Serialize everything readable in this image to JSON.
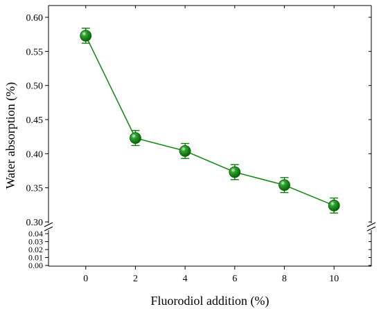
{
  "chart_data": {
    "type": "line",
    "xlabel": "Fluorodiol addition (%)",
    "ylabel": "Water absorption (%)",
    "x_ticks": [
      "0",
      "2",
      "4",
      "6",
      "8",
      "10"
    ],
    "xlim": [
      -1.5,
      11.5
    ],
    "y_upper_range": [
      0.3,
      0.6
    ],
    "y_upper_ticks": [
      "0.30",
      "0.35",
      "0.40",
      "0.45",
      "0.50",
      "0.55",
      "0.60"
    ],
    "y_lower_range": [
      0.0,
      0.04
    ],
    "y_lower_ticks": [
      "0.00",
      "0.01",
      "0.02",
      "0.03",
      "0.04"
    ],
    "axis_break": true,
    "grid": false,
    "legend": false,
    "color": "#1a8a1a",
    "marker_color": "#0a7a0a",
    "series": [
      {
        "x": [
          0,
          2,
          4,
          6,
          8,
          10
        ],
        "y": [
          0.573,
          0.423,
          0.404,
          0.373,
          0.354,
          0.324
        ],
        "error": [
          0.011,
          0.011,
          0.011,
          0.011,
          0.011,
          0.011
        ]
      }
    ]
  }
}
